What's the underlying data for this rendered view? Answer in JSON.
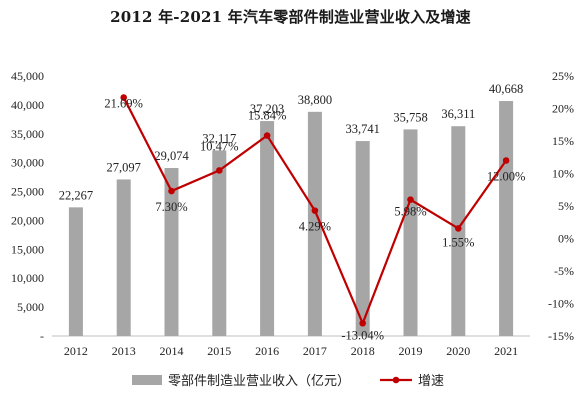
{
  "chart_data": {
    "type": "bar",
    "title": "2012 年-2021 年汽车零部件制造业营业收入及增速",
    "categories": [
      "2012",
      "2013",
      "2014",
      "2015",
      "2016",
      "2017",
      "2018",
      "2019",
      "2020",
      "2021"
    ],
    "series": [
      {
        "name": "零部件制造业营业收入（亿元）",
        "type": "bar",
        "axis": "left",
        "color": "#a6a6a6",
        "values": [
          22267,
          27097,
          29074,
          32117,
          37203,
          38800,
          33741,
          35758,
          36311,
          40668
        ],
        "labels": [
          "22,267",
          "27,097",
          "29,074",
          "32,117",
          "37,203",
          "38,800",
          "33,741",
          "35,758",
          "36,311",
          "40,668"
        ]
      },
      {
        "name": "增速",
        "type": "line",
        "axis": "right",
        "color": "#c00000",
        "values": [
          null,
          21.69,
          7.3,
          10.47,
          15.84,
          4.29,
          -13.04,
          5.98,
          1.55,
          12.0
        ],
        "labels": [
          "",
          "21.69%",
          "7.30%",
          "10.47%",
          "15.84%",
          "4.29%",
          "-13.04%",
          "5.98%",
          "1.55%",
          "12.00%"
        ]
      }
    ],
    "y_left": {
      "lim": [
        0,
        45000
      ],
      "ticks": [
        0,
        5000,
        10000,
        15000,
        20000,
        25000,
        30000,
        35000,
        40000,
        45000
      ],
      "tick_labels": [
        "-",
        "5,000",
        "10,000",
        "15,000",
        "20,000",
        "25,000",
        "30,000",
        "35,000",
        "40,000",
        "45,000"
      ]
    },
    "y_right": {
      "lim": [
        -15,
        25
      ],
      "ticks": [
        -15,
        -10,
        -5,
        0,
        5,
        10,
        15,
        20,
        25
      ],
      "tick_labels": [
        "-15%",
        "-10%",
        "-5%",
        "0%",
        "5%",
        "10%",
        "15%",
        "20%",
        "25%"
      ]
    },
    "grid": false,
    "legend": "bottom"
  }
}
